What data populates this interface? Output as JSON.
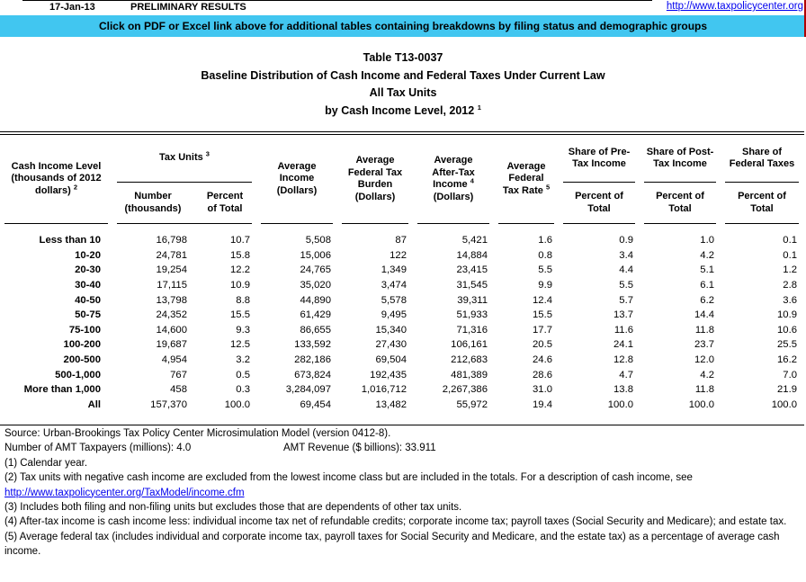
{
  "topbar": {
    "date": "17-Jan-13",
    "preliminary": "PRELIMINARY RESULTS",
    "site_url": "http://www.taxpolicycenter.org"
  },
  "banner": {
    "text": "Click on PDF or Excel link above for additional tables containing breakdowns by filing status and demographic groups"
  },
  "colors": {
    "banner_bg": "#41c6f0",
    "link_blue": "#0000ee",
    "edge_marker_red": "#b00000"
  },
  "title": {
    "line1": "Table T13-0037",
    "line2": "Baseline Distribution of Cash Income and Federal Taxes Under Current Law",
    "line3": "All Tax Units",
    "line4": "by Cash Income Level, 2012",
    "line4_sup": "1"
  },
  "table": {
    "headers": {
      "cash_income": {
        "l1": "Cash Income Level",
        "l2": "(thousands of 2012",
        "l3": "dollars)",
        "sup": "2"
      },
      "tax_units": {
        "label": "Tax Units",
        "sup": "3",
        "sub1a": "Number",
        "sub1b": "(thousands)",
        "sub2a": "Percent",
        "sub2b": "of Total"
      },
      "avg_income": {
        "l1": "Average",
        "l2": "Income",
        "l3": "(Dollars)"
      },
      "avg_burden": {
        "l1": "Average",
        "l2": "Federal Tax",
        "l3": "Burden",
        "l4": "(Dollars)"
      },
      "avg_aftertax": {
        "l1": "Average",
        "l2": "After-Tax",
        "l3": "Income",
        "sup": "4",
        "l4": "(Dollars)"
      },
      "avg_rate": {
        "l1": "Average",
        "l2": "Federal",
        "l3": "Tax Rate",
        "sup": "5"
      },
      "share_pre": {
        "l1": "Share of Pre-",
        "l2": "Tax Income",
        "sub1": "Percent of",
        "sub2": "Total"
      },
      "share_post": {
        "l1": "Share of Post-",
        "l2": "Tax Income",
        "sub1": "Percent of",
        "sub2": "Total"
      },
      "share_fed": {
        "l1": "Share of",
        "l2": "Federal Taxes",
        "sub1": "Percent of",
        "sub2": "Total"
      }
    },
    "rows": [
      {
        "label": "Less than 10",
        "cells": [
          "16,798",
          "10.7",
          "5,508",
          "87",
          "5,421",
          "1.6",
          "0.9",
          "1.0",
          "0.1"
        ]
      },
      {
        "label": "10-20",
        "cells": [
          "24,781",
          "15.8",
          "15,006",
          "122",
          "14,884",
          "0.8",
          "3.4",
          "4.2",
          "0.1"
        ]
      },
      {
        "label": "20-30",
        "cells": [
          "19,254",
          "12.2",
          "24,765",
          "1,349",
          "23,415",
          "5.5",
          "4.4",
          "5.1",
          "1.2"
        ]
      },
      {
        "label": "30-40",
        "cells": [
          "17,115",
          "10.9",
          "35,020",
          "3,474",
          "31,545",
          "9.9",
          "5.5",
          "6.1",
          "2.8"
        ]
      },
      {
        "label": "40-50",
        "cells": [
          "13,798",
          "8.8",
          "44,890",
          "5,578",
          "39,311",
          "12.4",
          "5.7",
          "6.2",
          "3.6"
        ]
      },
      {
        "label": "50-75",
        "cells": [
          "24,352",
          "15.5",
          "61,429",
          "9,495",
          "51,933",
          "15.5",
          "13.7",
          "14.4",
          "10.9"
        ]
      },
      {
        "label": "75-100",
        "cells": [
          "14,600",
          "9.3",
          "86,655",
          "15,340",
          "71,316",
          "17.7",
          "11.6",
          "11.8",
          "10.6"
        ]
      },
      {
        "label": "100-200",
        "cells": [
          "19,687",
          "12.5",
          "133,592",
          "27,430",
          "106,161",
          "20.5",
          "24.1",
          "23.7",
          "25.5"
        ]
      },
      {
        "label": "200-500",
        "cells": [
          "4,954",
          "3.2",
          "282,186",
          "69,504",
          "212,683",
          "24.6",
          "12.8",
          "12.0",
          "16.2"
        ]
      },
      {
        "label": "500-1,000",
        "cells": [
          "767",
          "0.5",
          "673,824",
          "192,435",
          "481,389",
          "28.6",
          "4.7",
          "4.2",
          "7.0"
        ]
      },
      {
        "label": "More than 1,000",
        "cells": [
          "458",
          "0.3",
          "3,284,097",
          "1,016,712",
          "2,267,386",
          "31.0",
          "13.8",
          "11.8",
          "21.9"
        ]
      },
      {
        "label": "All",
        "cells": [
          "157,370",
          "100.0",
          "69,454",
          "13,482",
          "55,972",
          "19.4",
          "100.0",
          "100.0",
          "100.0"
        ]
      }
    ]
  },
  "footer": {
    "source": "Source: Urban-Brookings Tax Policy Center Microsimulation Model (version 0412-8).",
    "amt_taxpayers": "Number of AMT Taxpayers (millions): 4.0",
    "amt_revenue": "AMT Revenue ($ billions): 33.911",
    "note1": "(1) Calendar year.",
    "note2": "(2) Tax units with negative cash income are excluded from the lowest income class but are included in the totals. For a description of cash income, see",
    "note2_link": "http://www.taxpolicycenter.org/TaxModel/income.cfm",
    "note3": "(3) Includes both filing and non-filing units but excludes those that are dependents of other tax units.",
    "note4": "(4) After-tax income is cash income less: individual income tax net of refundable credits; corporate income tax; payroll taxes (Social Security and Medicare); and estate tax.",
    "note5": "(5) Average federal tax (includes individual and corporate income tax, payroll taxes for Social Security and Medicare, and the estate tax) as a percentage of average cash income."
  }
}
